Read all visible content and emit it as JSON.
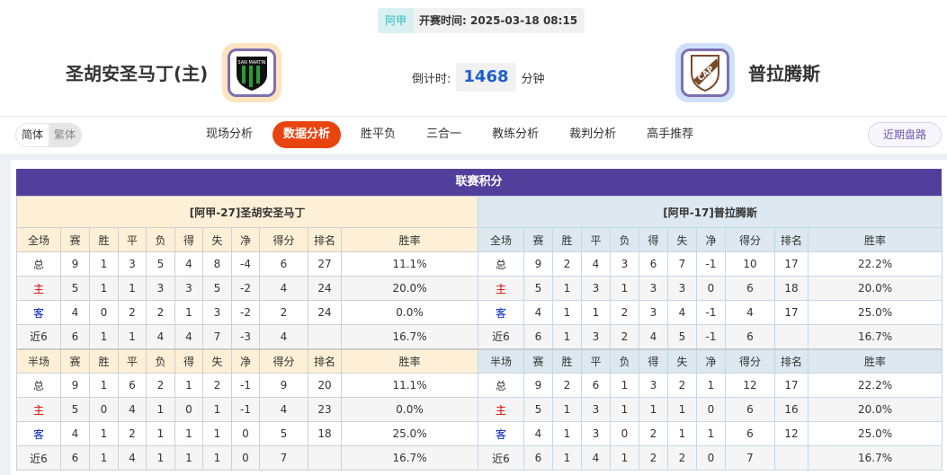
{
  "header": {
    "league": "阿甲",
    "kickoff_label": "开赛时间:",
    "kickoff": "2025-03-18 08:15",
    "home": "圣胡安圣马丁(主)",
    "away": "普拉腾斯",
    "countdown_label": "倒计时:",
    "countdown": "1468",
    "countdown_unit": "分钟"
  },
  "nav": {
    "lang": [
      "简体",
      "繁体"
    ],
    "tabs": [
      "现场分析",
      "数据分析",
      "胜平负",
      "三合一",
      "教练分析",
      "裁判分析",
      "高手推荐"
    ],
    "active": "数据分析",
    "recent": "近期盘路"
  },
  "colors": {
    "accent": "#e8440f",
    "title_bar": "#523f9c",
    "home_color": "#d00000",
    "away_color": "#0020c0"
  },
  "standings": {
    "title": "联赛积分",
    "columns": [
      "赛",
      "胜",
      "平",
      "负",
      "得",
      "失",
      "净",
      "得分",
      "排名",
      "胜率"
    ],
    "home": {
      "team": "[阿甲-27]圣胡安圣马丁",
      "full": {
        "label": "全场",
        "rows": [
          [
            "总",
            "9",
            "1",
            "3",
            "5",
            "4",
            "8",
            "-4",
            "6",
            "27",
            "11.1%"
          ],
          [
            "主",
            "5",
            "1",
            "1",
            "3",
            "3",
            "5",
            "-2",
            "4",
            "24",
            "20.0%"
          ],
          [
            "客",
            "4",
            "0",
            "2",
            "2",
            "1",
            "3",
            "-2",
            "2",
            "24",
            "0.0%"
          ],
          [
            "近6",
            "6",
            "1",
            "1",
            "4",
            "4",
            "7",
            "-3",
            "4",
            "",
            "16.7%"
          ]
        ]
      },
      "half": {
        "label": "半场",
        "rows": [
          [
            "总",
            "9",
            "1",
            "6",
            "2",
            "1",
            "2",
            "-1",
            "9",
            "20",
            "11.1%"
          ],
          [
            "主",
            "5",
            "0",
            "4",
            "1",
            "0",
            "1",
            "-1",
            "4",
            "23",
            "0.0%"
          ],
          [
            "客",
            "4",
            "1",
            "2",
            "1",
            "1",
            "1",
            "0",
            "5",
            "18",
            "25.0%"
          ],
          [
            "近6",
            "6",
            "1",
            "4",
            "1",
            "1",
            "1",
            "0",
            "7",
            "",
            "16.7%"
          ]
        ]
      }
    },
    "away": {
      "team": "[阿甲-17]普拉腾斯",
      "full": {
        "label": "全场",
        "rows": [
          [
            "总",
            "9",
            "2",
            "4",
            "3",
            "6",
            "7",
            "-1",
            "10",
            "17",
            "22.2%"
          ],
          [
            "主",
            "5",
            "1",
            "3",
            "1",
            "3",
            "3",
            "0",
            "6",
            "18",
            "20.0%"
          ],
          [
            "客",
            "4",
            "1",
            "1",
            "2",
            "3",
            "4",
            "-1",
            "4",
            "17",
            "25.0%"
          ],
          [
            "近6",
            "6",
            "1",
            "3",
            "2",
            "4",
            "5",
            "-1",
            "6",
            "",
            "16.7%"
          ]
        ]
      },
      "half": {
        "label": "半场",
        "rows": [
          [
            "总",
            "9",
            "2",
            "6",
            "1",
            "3",
            "2",
            "1",
            "12",
            "17",
            "22.2%"
          ],
          [
            "主",
            "5",
            "1",
            "3",
            "1",
            "1",
            "1",
            "0",
            "6",
            "16",
            "20.0%"
          ],
          [
            "客",
            "4",
            "1",
            "3",
            "0",
            "2",
            "1",
            "1",
            "6",
            "12",
            "25.0%"
          ],
          [
            "近6",
            "6",
            "1",
            "4",
            "1",
            "2",
            "2",
            "0",
            "7",
            "",
            "16.7%"
          ]
        ]
      }
    }
  }
}
